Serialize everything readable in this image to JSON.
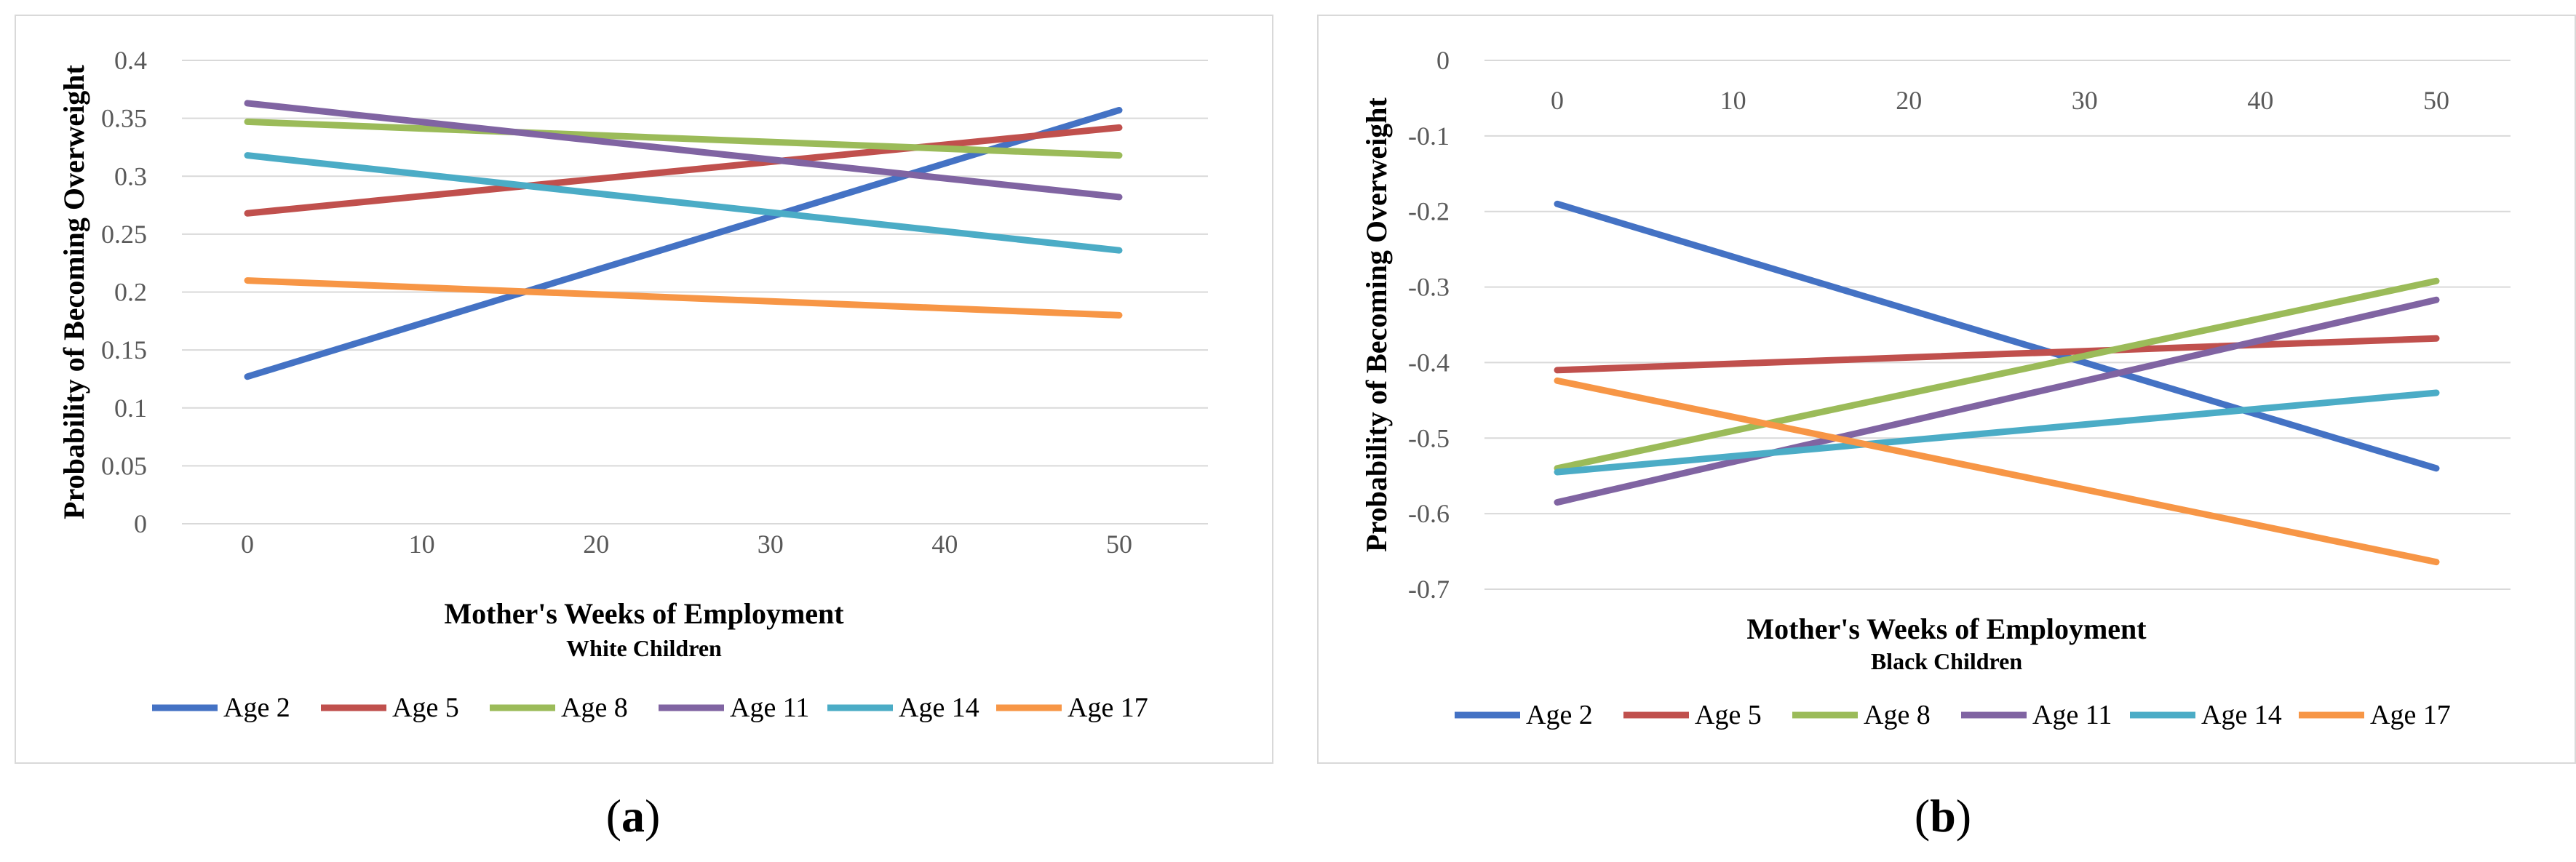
{
  "panel_labels": {
    "a": "(a)",
    "b": "(b)"
  },
  "panel_label_letters": {
    "a": "a",
    "b": "b"
  },
  "colors": {
    "Age 2": "#4472C4",
    "Age 5": "#C0504D",
    "Age 8": "#9BBB59",
    "Age 11": "#8064A2",
    "Age 14": "#4BACC6",
    "Age 17": "#F79646"
  },
  "chart_data": [
    {
      "type": "line",
      "title": "",
      "xlabel": "Mother's Weeks of Employment",
      "subtitle": "White Children",
      "ylabel": "Probability of Becoming Overweight",
      "x_ticks": [
        "0",
        "10",
        "20",
        "30",
        "40",
        "50"
      ],
      "y_ticks": [
        "0.4",
        "0.35",
        "0.3",
        "0.25",
        "0.2",
        "0.15",
        "0.1",
        "0.05",
        "0"
      ],
      "ylim": [
        0,
        0.4
      ],
      "xlim": [
        0,
        50
      ],
      "legend": "bottom",
      "series": [
        {
          "name": "Age 2",
          "x": [
            0,
            50
          ],
          "values": [
            0.127,
            0.357
          ]
        },
        {
          "name": "Age 5",
          "x": [
            0,
            50
          ],
          "values": [
            0.268,
            0.342
          ]
        },
        {
          "name": "Age 8",
          "x": [
            0,
            50
          ],
          "values": [
            0.347,
            0.318
          ]
        },
        {
          "name": "Age 11",
          "x": [
            0,
            50
          ],
          "values": [
            0.363,
            0.282
          ]
        },
        {
          "name": "Age 14",
          "x": [
            0,
            50
          ],
          "values": [
            0.318,
            0.236
          ]
        },
        {
          "name": "Age 17",
          "x": [
            0,
            50
          ],
          "values": [
            0.21,
            0.18
          ]
        }
      ]
    },
    {
      "type": "line",
      "title": "",
      "xlabel": "Mother's Weeks of Employment",
      "subtitle": "Black Children",
      "ylabel": "Probability of Becoming Overweight",
      "x_ticks": [
        "0",
        "10",
        "20",
        "30",
        "40",
        "50"
      ],
      "y_ticks": [
        "0",
        "-0.1",
        "-0.2",
        "-0.3",
        "-0.4",
        "-0.5",
        "-0.6",
        "-0.7"
      ],
      "ylim": [
        -0.7,
        0
      ],
      "xlim": [
        0,
        50
      ],
      "legend": "bottom",
      "series": [
        {
          "name": "Age 2",
          "x": [
            0,
            50
          ],
          "values": [
            -0.19,
            -0.54
          ]
        },
        {
          "name": "Age 5",
          "x": [
            0,
            50
          ],
          "values": [
            -0.41,
            -0.368
          ]
        },
        {
          "name": "Age 8",
          "x": [
            0,
            50
          ],
          "values": [
            -0.54,
            -0.292
          ]
        },
        {
          "name": "Age 11",
          "x": [
            0,
            50
          ],
          "values": [
            -0.585,
            -0.317
          ]
        },
        {
          "name": "Age 14",
          "x": [
            0,
            50
          ],
          "values": [
            -0.545,
            -0.44
          ]
        },
        {
          "name": "Age 17",
          "x": [
            0,
            50
          ],
          "values": [
            -0.424,
            -0.664
          ]
        }
      ]
    }
  ]
}
